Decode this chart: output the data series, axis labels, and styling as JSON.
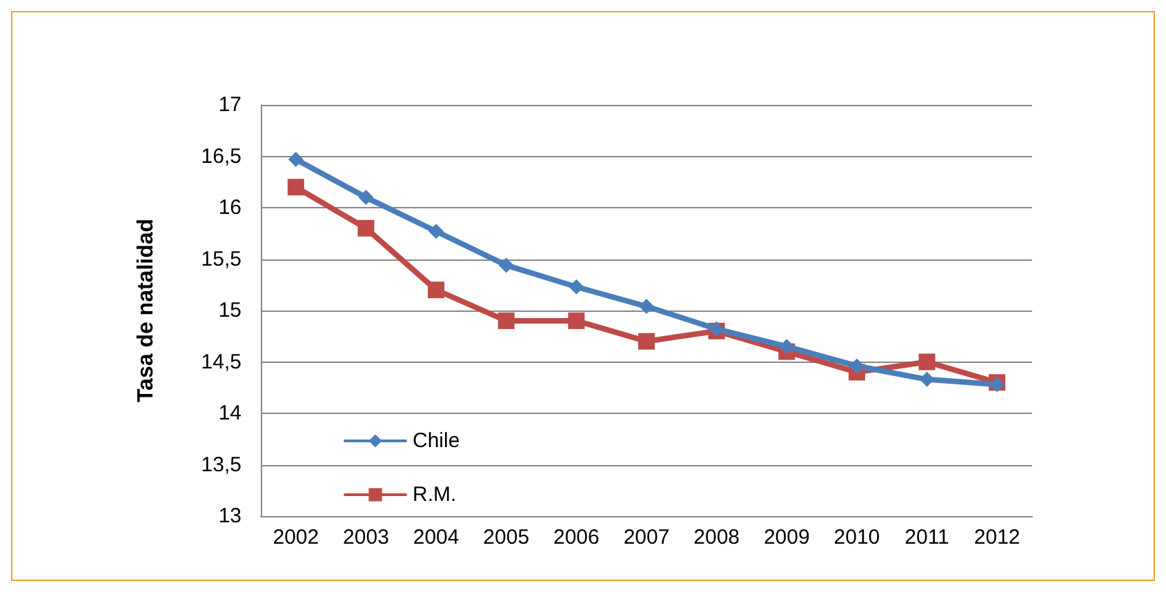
{
  "chart_data": {
    "type": "line",
    "ylabel": "Tasa de natalidad",
    "categories": [
      "2002",
      "2003",
      "2004",
      "2005",
      "2006",
      "2007",
      "2008",
      "2009",
      "2010",
      "2011",
      "2012"
    ],
    "series": [
      {
        "name": "Chile",
        "color": "#4a7ebb",
        "marker": "diamond",
        "values": [
          16.47,
          16.1,
          15.77,
          15.44,
          15.23,
          15.04,
          14.82,
          14.65,
          14.46,
          14.33,
          14.28
        ]
      },
      {
        "name": "R.M.",
        "color": "#be4b48",
        "marker": "square",
        "values": [
          16.2,
          15.8,
          15.2,
          14.9,
          14.9,
          14.7,
          14.8,
          14.6,
          14.4,
          14.5,
          14.3
        ]
      }
    ],
    "ylim": [
      13,
      17
    ],
    "yticks": [
      13,
      {
        "value": 13.5,
        "label": "13,5"
      },
      14,
      {
        "value": 14.5,
        "label": "14,5"
      },
      15,
      {
        "value": 15.5,
        "label": "15,5"
      },
      16,
      {
        "value": 16.5,
        "label": "16,5"
      },
      17
    ],
    "grid": "y",
    "legend": "bottom left",
    "line_style": "solid"
  }
}
